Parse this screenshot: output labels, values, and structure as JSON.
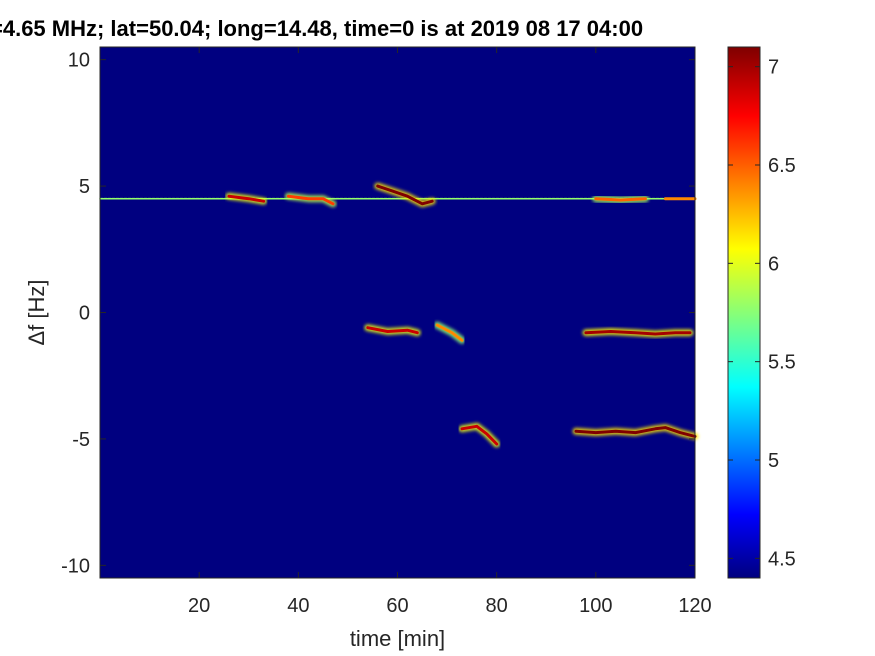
{
  "chart_data": {
    "type": "heatmap",
    "title": "=4.65 MHz;  lat=50.04; long=14.48, time=0 is at 2019 08 17 04:00",
    "xlabel": "time [min]",
    "ylabel": "Δf [Hz]",
    "xlim": [
      0,
      120
    ],
    "ylim": [
      -10.5,
      10.5
    ],
    "x_ticks": [
      20,
      40,
      60,
      80,
      100,
      120
    ],
    "y_ticks": [
      10,
      5,
      0,
      -5,
      -10
    ],
    "colorbar": {
      "range": [
        4.4,
        7.1
      ],
      "ticks": [
        4.5,
        5,
        5.5,
        6,
        6.5,
        7
      ],
      "colormap": "jet"
    },
    "background_value": 4.4,
    "features": [
      {
        "name": "carrier",
        "points": [
          [
            0,
            4.5
          ],
          [
            120,
            4.5
          ]
        ],
        "value": 5.8
      },
      {
        "name": "trace",
        "points": [
          [
            26,
            4.6
          ],
          [
            30,
            4.5
          ],
          [
            33,
            4.4
          ]
        ],
        "value": 6.9
      },
      {
        "name": "trace",
        "points": [
          [
            38,
            4.6
          ],
          [
            42,
            4.5
          ],
          [
            45,
            4.5
          ],
          [
            47,
            4.3
          ]
        ],
        "value": 6.6
      },
      {
        "name": "trace",
        "points": [
          [
            56,
            5.0
          ],
          [
            59,
            4.8
          ],
          [
            62,
            4.6
          ],
          [
            65,
            4.3
          ],
          [
            67,
            4.4
          ]
        ],
        "value": 7.1
      },
      {
        "name": "trace",
        "points": [
          [
            100,
            4.5
          ],
          [
            105,
            4.45
          ],
          [
            110,
            4.5
          ]
        ],
        "value": 6.5
      },
      {
        "name": "trace",
        "points": [
          [
            114,
            4.5
          ],
          [
            120,
            4.5
          ]
        ],
        "value": 6.4
      },
      {
        "name": "trace",
        "points": [
          [
            54,
            -0.6
          ],
          [
            58,
            -0.75
          ],
          [
            62,
            -0.7
          ],
          [
            64,
            -0.8
          ]
        ],
        "value": 6.9
      },
      {
        "name": "trace",
        "points": [
          [
            68,
            -0.5
          ],
          [
            71,
            -0.8
          ],
          [
            73,
            -1.1
          ]
        ],
        "value": 6.4
      },
      {
        "name": "trace",
        "points": [
          [
            98,
            -0.8
          ],
          [
            103,
            -0.75
          ],
          [
            108,
            -0.8
          ],
          [
            112,
            -0.85
          ],
          [
            116,
            -0.8
          ],
          [
            119,
            -0.8
          ]
        ],
        "value": 7.0
      },
      {
        "name": "trace",
        "points": [
          [
            73,
            -4.6
          ],
          [
            76,
            -4.5
          ],
          [
            78,
            -4.8
          ],
          [
            80,
            -5.2
          ]
        ],
        "value": 6.9
      },
      {
        "name": "trace",
        "points": [
          [
            96,
            -4.7
          ],
          [
            100,
            -4.75
          ],
          [
            104,
            -4.7
          ],
          [
            108,
            -4.75
          ],
          [
            112,
            -4.6
          ],
          [
            114,
            -4.55
          ],
          [
            117,
            -4.75
          ],
          [
            120,
            -4.9
          ]
        ],
        "value": 7.1
      }
    ]
  }
}
